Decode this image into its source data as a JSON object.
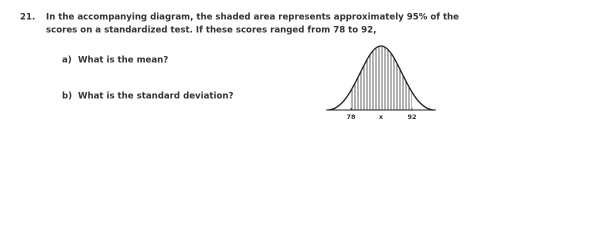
{
  "question": {
    "number": "21.",
    "text_lines": [
      "In the accompanying diagram, the shaded area represents approximately 95% of the",
      "scores on a standardized test. If these scores ranged from 78 to 92,"
    ],
    "parts": [
      {
        "label": "a)",
        "text": "What is the mean?"
      },
      {
        "label": "b)",
        "text": "What is the standard deviation?"
      }
    ]
  },
  "diagram": {
    "labels": [
      "78",
      "x",
      "92"
    ]
  }
}
